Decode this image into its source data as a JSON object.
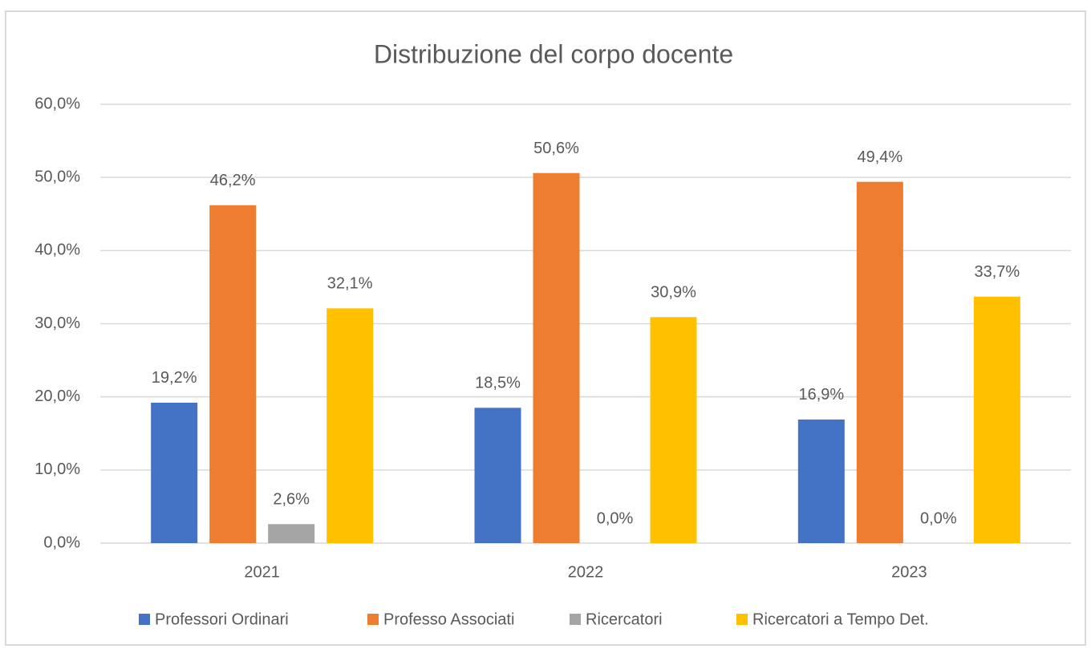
{
  "chart_data": {
    "type": "bar",
    "title": "Distribuzione del corpo docente",
    "categories": [
      "2021",
      "2022",
      "2023"
    ],
    "series": [
      {
        "name": "Professori Ordinari",
        "color": "#4472c4",
        "values": [
          19.2,
          18.5,
          16.9
        ],
        "value_labels": [
          "19,2%",
          "18,5%",
          "16,9%"
        ]
      },
      {
        "name": "Professo Associati",
        "color": "#ed7d31",
        "values": [
          46.2,
          50.6,
          49.4
        ],
        "value_labels": [
          "46,2%",
          "50,6%",
          "49,4%"
        ]
      },
      {
        "name": "Ricercatori",
        "color": "#a5a5a5",
        "values": [
          2.6,
          0.0,
          0.0
        ],
        "value_labels": [
          "2,6%",
          "0,0%",
          "0,0%"
        ]
      },
      {
        "name": "Ricercatori a Tempo Det.",
        "color": "#ffc000",
        "values": [
          32.1,
          30.9,
          33.7
        ],
        "value_labels": [
          "32,1%",
          "30,9%",
          "33,7%"
        ]
      }
    ],
    "ylim": [
      0,
      60
    ],
    "yticks": [
      {
        "value": 0,
        "label": "0,0%"
      },
      {
        "value": 10,
        "label": "10,0%"
      },
      {
        "value": 20,
        "label": "20,0%"
      },
      {
        "value": 30,
        "label": "30,0%"
      },
      {
        "value": 40,
        "label": "40,0%"
      },
      {
        "value": 50,
        "label": "50,0%"
      },
      {
        "value": 60,
        "label": "60,0%"
      }
    ],
    "grid": true,
    "legend": "bottom"
  }
}
